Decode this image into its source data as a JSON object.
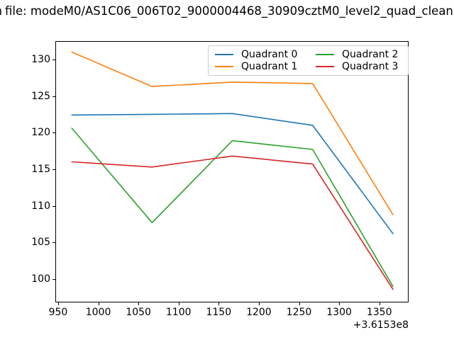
{
  "chart_data": {
    "type": "line",
    "title": "file: modeM0/AS1C06_006T02_9000004468_30909cztM0_level2_quad_clean",
    "title_fragment": "m",
    "x": [
      967,
      1067,
      1167,
      1267,
      1367
    ],
    "x_offset_text": "+3.6153e8",
    "series": [
      {
        "name": "Quadrant 0",
        "color": "#1f77b4",
        "values": [
          122.4,
          122.5,
          122.6,
          121.0,
          106.2
        ]
      },
      {
        "name": "Quadrant 1",
        "color": "#ff7f0e",
        "values": [
          131.0,
          126.3,
          126.9,
          126.7,
          108.8
        ]
      },
      {
        "name": "Quadrant 2",
        "color": "#2ca02c",
        "values": [
          120.6,
          107.7,
          118.9,
          117.7,
          99.0
        ]
      },
      {
        "name": "Quadrant 3",
        "color": "#d62728",
        "values": [
          116.0,
          115.3,
          116.8,
          115.7,
          98.6
        ]
      }
    ],
    "xticks": [
      950,
      1000,
      1050,
      1100,
      1150,
      1200,
      1250,
      1300,
      1350
    ],
    "yticks": [
      100,
      105,
      110,
      115,
      120,
      125,
      130
    ],
    "xlim": [
      946.5,
      1386.5
    ],
    "ylim": [
      96.8,
      132.5
    ],
    "xlabel": "",
    "ylabel": "",
    "grid": false,
    "legend_position": "upper-right-inside",
    "legend_columns": 2,
    "axis_color": "#000000",
    "background_color": "#ffffff"
  }
}
